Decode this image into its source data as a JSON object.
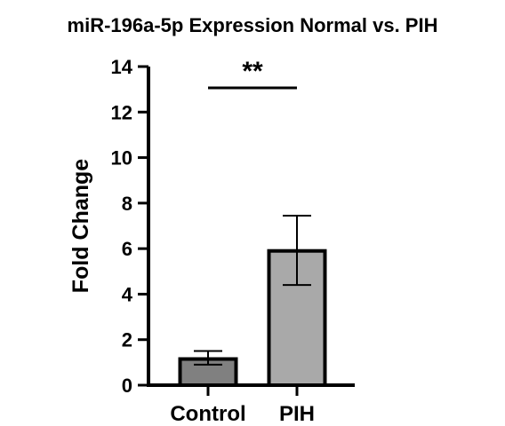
{
  "chart_data": {
    "type": "bar",
    "title": "miR-196a-5p Expression Normal vs. PIH",
    "xlabel": "",
    "ylabel": "Fold Change",
    "categories": [
      "Control",
      "PIH"
    ],
    "values": [
      1.15,
      5.9
    ],
    "error_low": [
      0.9,
      4.4
    ],
    "error_high": [
      1.5,
      7.45
    ],
    "ylim": [
      0,
      14
    ],
    "yticks": [
      "0",
      "2",
      "4",
      "6",
      "8",
      "10",
      "12",
      "14"
    ],
    "bar_colors": [
      "#808080",
      "#a9a9a9"
    ],
    "significance": {
      "label": "**",
      "between": [
        "Control",
        "PIH"
      ]
    },
    "grid": false,
    "legend": "none"
  }
}
